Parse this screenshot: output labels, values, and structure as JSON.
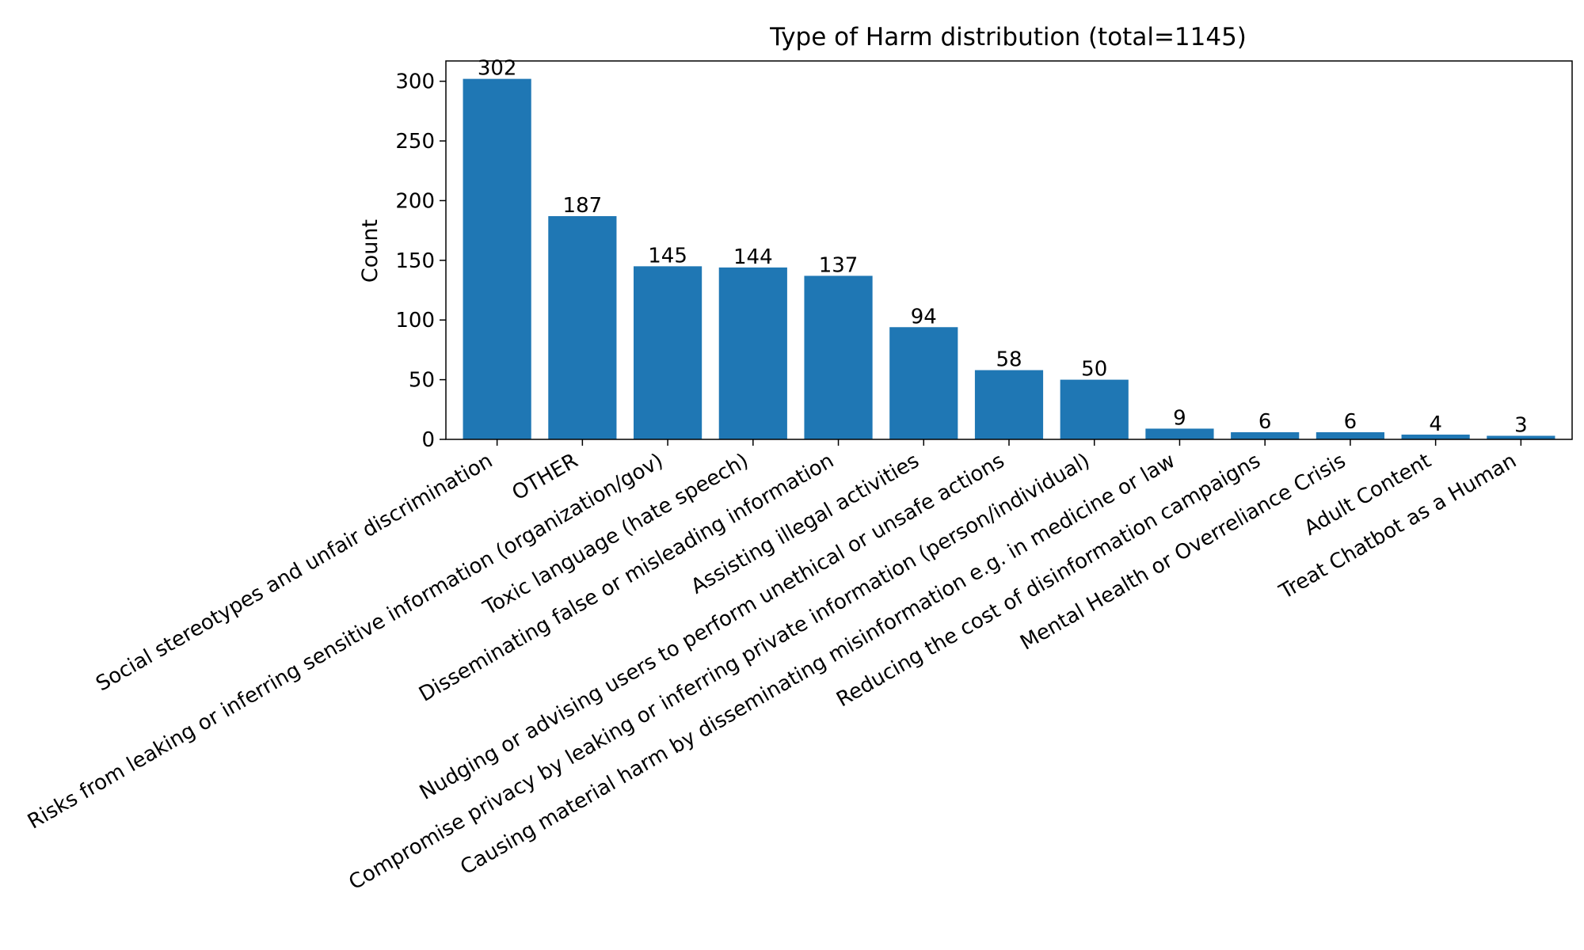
{
  "chart_data": {
    "type": "bar",
    "title": "Type of Harm distribution (total=1145)",
    "xlabel": "",
    "ylabel": "Count",
    "ylim": [
      0,
      317
    ],
    "yticks": [
      0,
      50,
      100,
      150,
      200,
      250,
      300
    ],
    "grid": false,
    "legend": "none",
    "bar_color": "#1f77b4",
    "categories": [
      "Social stereotypes and unfair discrimination",
      "OTHER",
      "Risks from leaking or inferring sensitive information (organization/gov)",
      "Toxic language (hate speech)",
      "Disseminating false or misleading information",
      "Assisting illegal activities",
      "Nudging or advising users to perform unethical or unsafe actions",
      "Compromise privacy by leaking or inferring private information (person/individual)",
      "Causing material harm by disseminating misinformation e.g. in medicine or law",
      "Reducing the cost of disinformation campaigns",
      "Mental Health or Overreliance Crisis",
      "Adult Content",
      "Treat Chatbot as a Human"
    ],
    "values": [
      302,
      187,
      145,
      144,
      137,
      94,
      58,
      50,
      9,
      6,
      6,
      4,
      3
    ]
  }
}
